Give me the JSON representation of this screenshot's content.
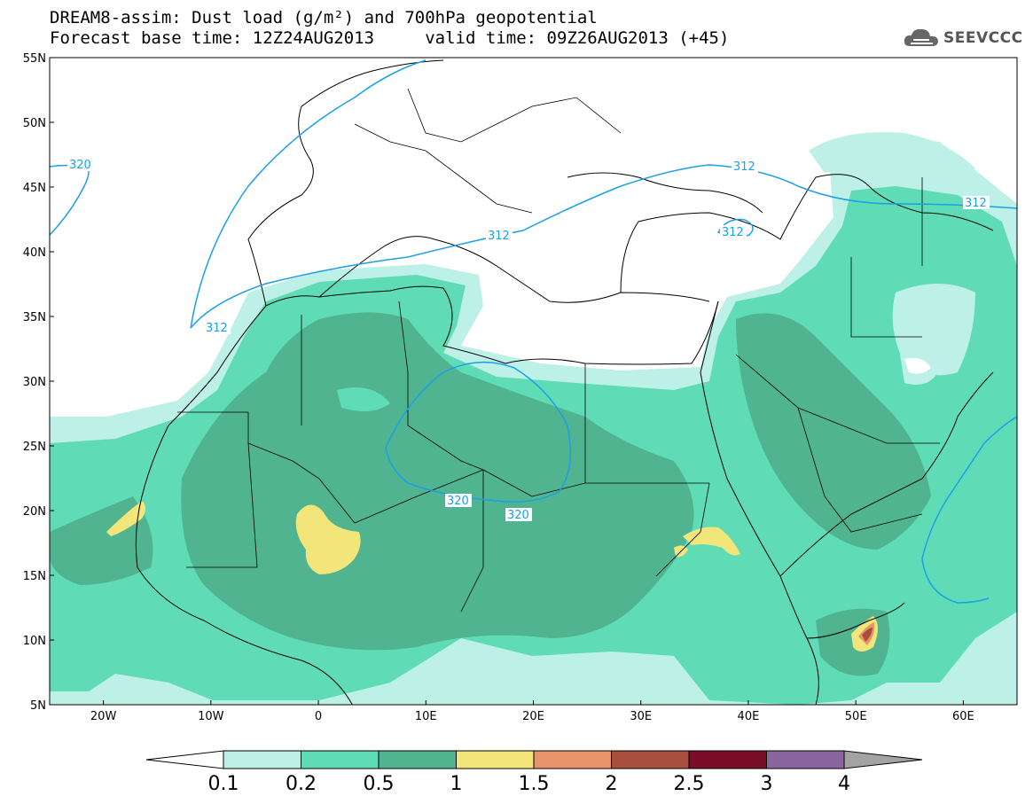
{
  "header": {
    "title_line1": "DREAM8-assim: Dust load (g/m²) and 700hPa geopotential",
    "title_line2": "Forecast base time: 12Z24AUG2013     valid time: 09Z26AUG2013 (+45)"
  },
  "logo": {
    "text": "SEEVCCC",
    "icon": "cloud-icon"
  },
  "map": {
    "lon_range": [
      -25,
      65
    ],
    "lat_range": [
      5,
      55
    ],
    "lat_ticks": [
      "5N",
      "10N",
      "15N",
      "20N",
      "25N",
      "30N",
      "35N",
      "40N",
      "45N",
      "50N",
      "55N"
    ],
    "lon_ticks": [
      "20W",
      "10W",
      "0",
      "10E",
      "20E",
      "30E",
      "40E",
      "50E",
      "60E"
    ],
    "contour_labels": [
      "320",
      "312",
      "312",
      "312",
      "312",
      "312",
      "320",
      "320"
    ]
  },
  "legend": {
    "labels": [
      "0.1",
      "0.2",
      "0.5",
      "1",
      "1.5",
      "2",
      "2.5",
      "3",
      "4"
    ],
    "colors": [
      "#bdf0e6",
      "#5fdcb6",
      "#4fb48f",
      "#f2e67a",
      "#e8946a",
      "#a84e3e",
      "#7a0e26",
      "#8b669e",
      "#a3a3a3"
    ]
  },
  "colors": {
    "ocean": "#ffffff",
    "land_border": "#000000",
    "contour": "#1aa0e8"
  }
}
